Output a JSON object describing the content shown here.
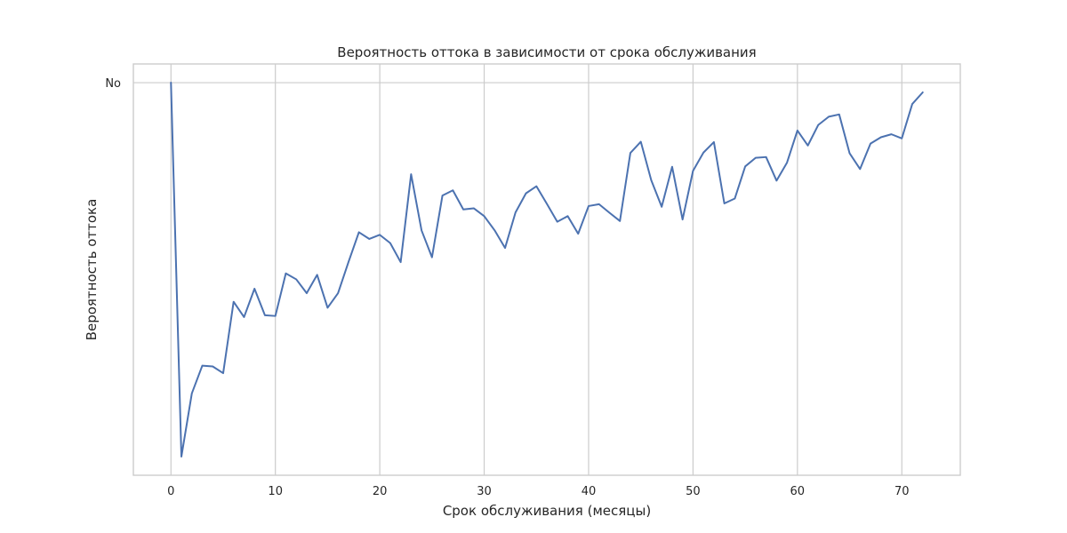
{
  "chart_data": {
    "type": "line",
    "title": "Вероятность оттока в зависимости от срока обслуживания",
    "xlabel": "Срок обслуживания (месяцы)",
    "ylabel": "Вероятность оттока",
    "xlim": [
      -3.6,
      75.6
    ],
    "ylim": [
      -0.05,
      1.05
    ],
    "x_ticks": [
      0,
      10,
      20,
      30,
      40,
      50,
      60,
      70
    ],
    "y_ticks": [
      {
        "value": 1.0,
        "label": "No"
      }
    ],
    "grid": true,
    "colors": {
      "line": "#4c72b0",
      "grid": "#cccccc",
      "spine": "#cccccc",
      "text": "#262626"
    },
    "series": [
      {
        "x": [
          0,
          1,
          2,
          3,
          4,
          5,
          6,
          7,
          8,
          9,
          10,
          11,
          12,
          13,
          14,
          15,
          16,
          17,
          18,
          19,
          20,
          21,
          22,
          23,
          24,
          25,
          26,
          27,
          28,
          29,
          30,
          31,
          32,
          33,
          34,
          35,
          36,
          37,
          38,
          39,
          40,
          41,
          42,
          43,
          44,
          45,
          46,
          47,
          48,
          49,
          50,
          51,
          52,
          53,
          54,
          55,
          56,
          57,
          58,
          59,
          60,
          61,
          62,
          63,
          64,
          65,
          66,
          67,
          68,
          69,
          70,
          71,
          72
        ],
        "y": [
          1.0,
          0.0,
          0.169,
          0.243,
          0.241,
          0.223,
          0.414,
          0.373,
          0.449,
          0.378,
          0.376,
          0.49,
          0.474,
          0.437,
          0.486,
          0.398,
          0.437,
          0.52,
          0.6,
          0.582,
          0.593,
          0.571,
          0.52,
          0.755,
          0.605,
          0.533,
          0.698,
          0.712,
          0.661,
          0.664,
          0.643,
          0.605,
          0.558,
          0.653,
          0.704,
          0.723,
          0.676,
          0.628,
          0.643,
          0.596,
          0.67,
          0.675,
          0.652,
          0.63,
          0.812,
          0.842,
          0.739,
          0.668,
          0.775,
          0.634,
          0.764,
          0.813,
          0.841,
          0.677,
          0.69,
          0.776,
          0.799,
          0.801,
          0.738,
          0.786,
          0.872,
          0.832,
          0.887,
          0.909,
          0.915,
          0.811,
          0.769,
          0.837,
          0.854,
          0.862,
          0.851,
          0.943,
          0.974
        ]
      }
    ]
  }
}
